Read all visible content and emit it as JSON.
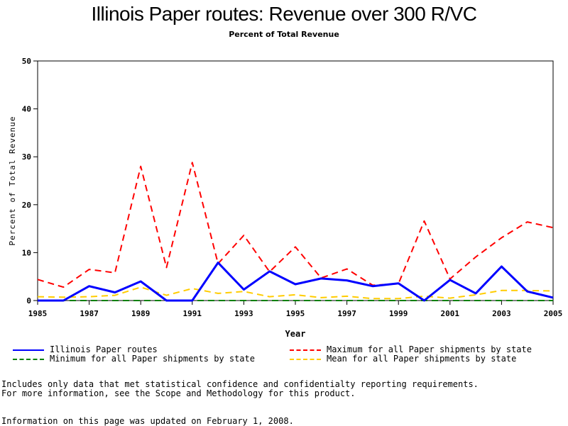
{
  "chart_data": {
    "type": "line",
    "title": "Illinois Paper routes: Revenue over 300 R/VC",
    "subtitle": "Percent of Total Revenue",
    "xlabel": "Year",
    "ylabel": "Percent of Total Revenue",
    "xlim": [
      1985,
      2005
    ],
    "ylim": [
      0,
      50
    ],
    "xticks": [
      "1985",
      "1987",
      "1989",
      "1991",
      "1993",
      "1995",
      "1997",
      "1999",
      "2001",
      "2003",
      "2005"
    ],
    "yticks": [
      "0",
      "10",
      "20",
      "30",
      "40",
      "50"
    ],
    "grid": false,
    "legend_position": "bottom",
    "x": [
      1985,
      1986,
      1987,
      1988,
      1989,
      1990,
      1991,
      1992,
      1993,
      1994,
      1995,
      1996,
      1997,
      1998,
      1999,
      2000,
      2001,
      2002,
      2003,
      2004,
      2005
    ],
    "series": [
      {
        "name": "Illinois Paper routes",
        "color": "#0000ff",
        "style": "solid",
        "values": [
          0,
          0,
          3,
          1.7,
          4,
          0,
          0,
          7.9,
          2.3,
          6.1,
          3.4,
          4.6,
          4.2,
          3,
          3.6,
          0,
          4.3,
          1.5,
          7.1,
          1.9,
          0.6
        ]
      },
      {
        "name": "Maximum for all Paper shipments by state",
        "color": "#ff0000",
        "style": "dashed",
        "values": [
          4.4,
          2.8,
          6.5,
          5.8,
          28,
          6.9,
          28.8,
          7.7,
          13.6,
          6,
          11.2,
          4.7,
          6.6,
          3.2,
          3.5,
          16.6,
          4.5,
          9.1,
          13.1,
          16.4,
          15.2
        ]
      },
      {
        "name": "Minimum for all Paper shipments by state",
        "color": "#008000",
        "style": "dashed",
        "values": [
          0,
          0,
          0,
          0,
          0,
          0,
          0,
          0,
          0,
          0,
          0,
          0,
          0,
          0,
          0,
          0,
          0,
          0,
          0,
          0,
          0
        ]
      },
      {
        "name": "Mean for all Paper shipments by state",
        "color": "#ffcc00",
        "style": "dashed",
        "values": [
          0.8,
          0.7,
          0.8,
          1.1,
          2.8,
          1.1,
          2.5,
          1.5,
          1.9,
          0.8,
          1.2,
          0.6,
          0.9,
          0.4,
          0.4,
          0.9,
          0.5,
          1.2,
          2.1,
          2.1,
          2
        ]
      }
    ]
  },
  "legend": [
    {
      "label": "Illinois Paper routes",
      "color": "#0000ff",
      "style": "solid"
    },
    {
      "label": "Maximum for all Paper shipments by state",
      "color": "#ff0000",
      "style": "dashed"
    },
    {
      "label": "Minimum for all Paper shipments by state",
      "color": "#008000",
      "style": "dashed"
    },
    {
      "label": "Mean for all Paper shipments by state",
      "color": "#ffcc00",
      "style": "dashed"
    }
  ],
  "notes": {
    "line1": "Includes only data that met statistical confidence and confidentialty reporting requirements.",
    "line2": "For more information, see the Scope and Methodology for this product.",
    "updated": "Information on this page was updated on February 1, 2008."
  }
}
